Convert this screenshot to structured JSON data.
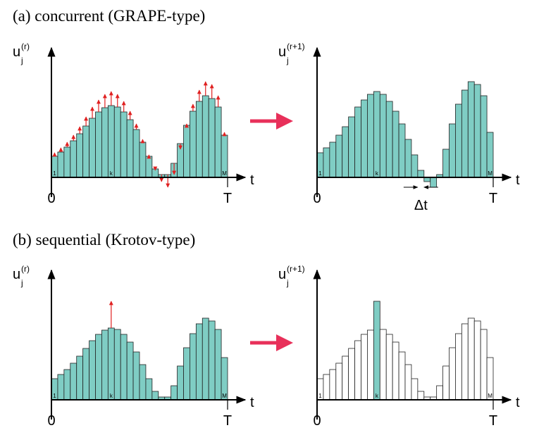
{
  "sections": [
    {
      "title": "(a) concurrent (GRAPE-type)",
      "panels": [
        {
          "y_label": "u",
          "y_sub": "j",
          "y_sup": "(r)",
          "x_label": "t",
          "x_start": "0",
          "x_end": "T",
          "bar_labels": [
            "1",
            "k",
            "M"
          ],
          "bar_color": "#7fcdc4",
          "bars": [
            30,
            36,
            43,
            52,
            62,
            73,
            84,
            93,
            99,
            102,
            100,
            93,
            82,
            68,
            50,
            30,
            12,
            4,
            4,
            20,
            48,
            74,
            94,
            108,
            116,
            112,
            100,
            60
          ]
        },
        {
          "y_label": "u",
          "y_sub": "j",
          "y_sup": "(r+1)",
          "x_label": "t",
          "x_start": "0",
          "x_end": "T",
          "bar_labels": [
            "1",
            "k",
            "M"
          ],
          "bar_color": "#7fcdc4",
          "interval_label": "Δt",
          "bars": [
            35,
            42,
            50,
            60,
            72,
            86,
            100,
            110,
            118,
            122,
            118,
            108,
            94,
            76,
            54,
            32,
            10,
            -6,
            -14,
            4,
            40,
            76,
            104,
            124,
            136,
            132,
            116,
            64
          ]
        }
      ]
    },
    {
      "title": "(b) sequential (Krotov-type)",
      "panels": [
        {
          "y_label": "u",
          "y_sub": "j",
          "y_sup": "(r)",
          "x_label": "t",
          "x_start": "0",
          "x_end": "T",
          "bar_labels": [
            "1",
            "k",
            "M"
          ],
          "bar_color": "#7fcdc4",
          "bars": [
            30,
            36,
            43,
            52,
            62,
            73,
            84,
            93,
            99,
            102,
            100,
            93,
            82,
            68,
            50,
            30,
            12,
            4,
            4,
            20,
            48,
            74,
            94,
            108,
            116,
            112,
            100,
            60
          ]
        },
        {
          "y_label": "u",
          "y_sub": "j",
          "y_sup": "(r+1)",
          "x_label": "t",
          "x_start": "0",
          "x_end": "T",
          "bar_labels": [
            "1",
            "k",
            "M"
          ],
          "bar_color": "#ffffff",
          "changed_color": "#7fcdc4",
          "bars": [
            30,
            36,
            43,
            52,
            62,
            73,
            84,
            93,
            99,
            140,
            100,
            93,
            82,
            68,
            50,
            30,
            12,
            4,
            4,
            20,
            48,
            74,
            94,
            108,
            116,
            112,
            100,
            60
          ]
        }
      ]
    }
  ]
}
